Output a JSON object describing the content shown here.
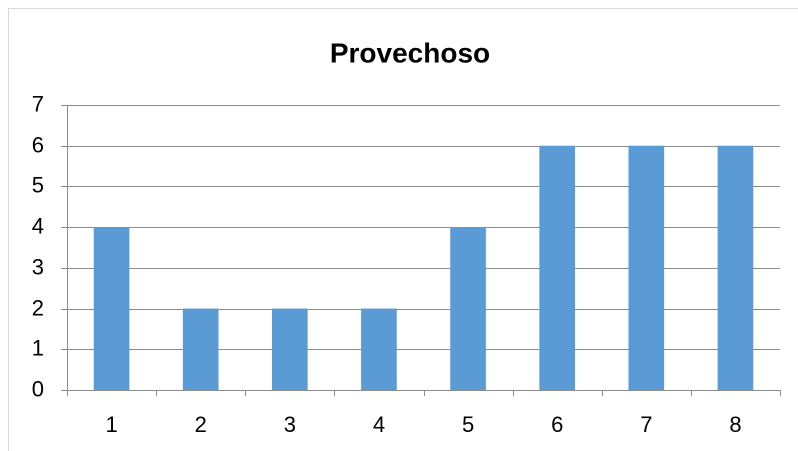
{
  "chart_data": {
    "type": "bar",
    "title": "Provechoso",
    "categories": [
      "1",
      "2",
      "3",
      "4",
      "5",
      "6",
      "7",
      "8"
    ],
    "values": [
      4,
      2,
      2,
      2,
      4,
      6,
      6,
      6
    ],
    "color": "#5b9bd5",
    "ylim": [
      0,
      7
    ],
    "yticks": [
      0,
      1,
      2,
      3,
      4,
      5,
      6,
      7
    ],
    "grid": true
  }
}
